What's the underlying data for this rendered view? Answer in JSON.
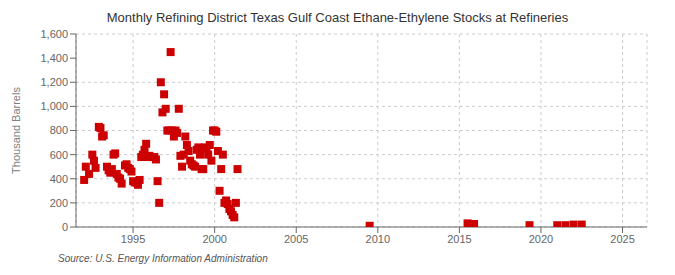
{
  "chart_data": {
    "type": "scatter",
    "title": "Monthly Refining District Texas Gulf Coast Ethane-Ethylene Stocks at Refineries",
    "ylabel": "Thousand Barrels",
    "annotations": [
      "Source: U.S. Energy Information Administration"
    ],
    "color": "#cc0000",
    "marker": "square",
    "grid": true,
    "xlim": [
      1991.5,
      2026.5
    ],
    "ylim": [
      0,
      1600
    ],
    "xticks": [
      1995,
      2000,
      2005,
      2010,
      2015,
      2020,
      2025
    ],
    "yticks": [
      0,
      200,
      400,
      600,
      800,
      {
        "value": 1000,
        "label": "1,000"
      },
      {
        "value": 1200,
        "label": "1,200"
      },
      {
        "value": 1400,
        "label": "1,400"
      },
      {
        "value": 1600,
        "label": "1,600"
      }
    ],
    "x": [
      1992.0,
      1992.1,
      1992.3,
      1992.5,
      1992.6,
      1992.7,
      1992.9,
      1993.0,
      1993.1,
      1993.2,
      1993.4,
      1993.5,
      1993.6,
      1993.7,
      1993.8,
      1993.9,
      1994.0,
      1994.1,
      1994.2,
      1994.3,
      1994.5,
      1994.6,
      1994.7,
      1994.8,
      1994.9,
      1995.0,
      1995.1,
      1995.2,
      1995.3,
      1995.4,
      1995.5,
      1995.6,
      1995.7,
      1995.8,
      1995.9,
      1996.0,
      1996.1,
      1996.2,
      1996.3,
      1996.4,
      1996.5,
      1996.6,
      1996.7,
      1996.8,
      1996.9,
      1997.0,
      1997.1,
      1997.2,
      1997.3,
      1997.4,
      1997.5,
      1997.6,
      1997.7,
      1997.8,
      1997.9,
      1998.0,
      1998.1,
      1998.2,
      1998.3,
      1998.4,
      1998.5,
      1998.6,
      1998.7,
      1998.8,
      1998.9,
      1999.0,
      1999.1,
      1999.2,
      1999.3,
      1999.4,
      1999.5,
      1999.6,
      1999.7,
      1999.8,
      1999.9,
      2000.0,
      2000.1,
      2000.2,
      2000.3,
      2000.4,
      2000.5,
      2000.6,
      2000.7,
      2000.8,
      2000.9,
      2001.0,
      2001.1,
      2001.2,
      2001.3,
      2001.4,
      2009.5,
      2015.5,
      2015.7,
      2015.9,
      2019.3,
      2021.0,
      2021.5,
      2022.0,
      2022.5
    ],
    "values": [
      390,
      500,
      440,
      600,
      550,
      490,
      830,
      820,
      750,
      760,
      500,
      470,
      450,
      480,
      600,
      610,
      440,
      410,
      400,
      360,
      510,
      520,
      490,
      480,
      460,
      380,
      370,
      370,
      350,
      390,
      580,
      600,
      640,
      690,
      580,
      590,
      580,
      580,
      580,
      560,
      380,
      200,
      1200,
      950,
      1100,
      980,
      800,
      800,
      1450,
      800,
      750,
      800,
      780,
      980,
      590,
      500,
      600,
      750,
      680,
      630,
      550,
      520,
      510,
      500,
      640,
      660,
      600,
      480,
      480,
      660,
      650,
      600,
      680,
      550,
      800,
      800,
      790,
      630,
      300,
      480,
      600,
      200,
      220,
      190,
      150,
      130,
      100,
      80,
      200,
      480,
      10,
      30,
      25,
      25,
      15,
      15,
      15,
      20,
      20
    ]
  }
}
